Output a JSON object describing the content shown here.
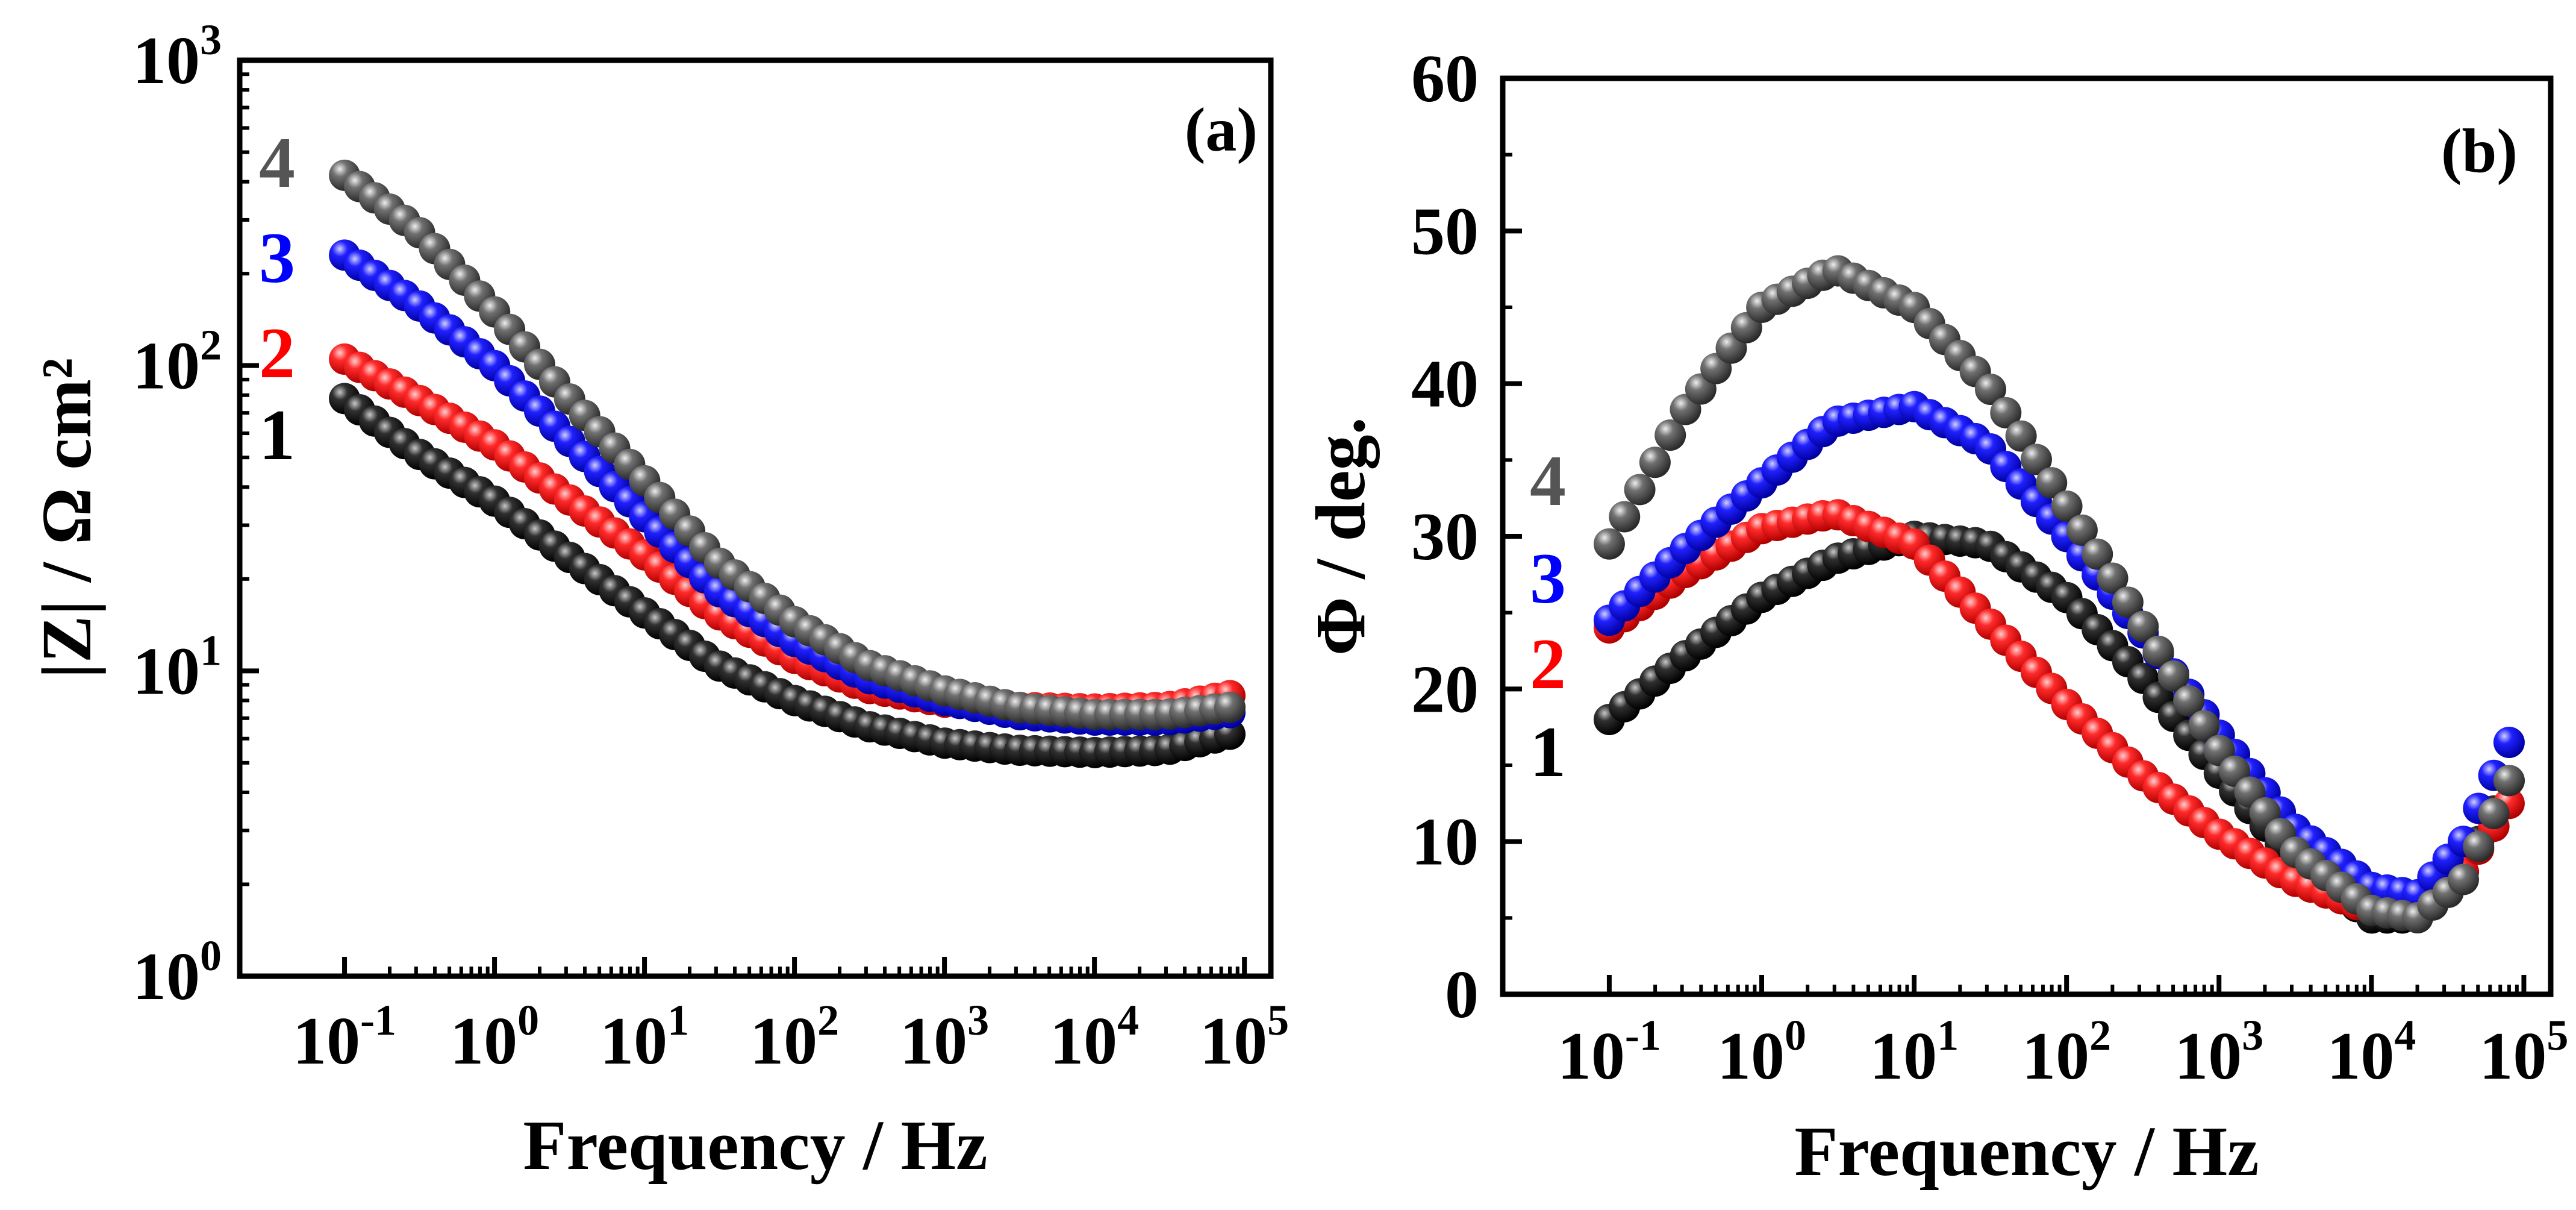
{
  "chart_data": [
    {
      "id": "a",
      "type": "scatter",
      "panel_label": "(a)",
      "xlabel": "Frequency / Hz",
      "ylabel": "|Z| / Ω cm²",
      "xscale": "log",
      "yscale": "log",
      "xlim": [
        0.02,
        150000
      ],
      "ylim": [
        1,
        1000
      ],
      "x_ticks": [
        {
          "value": 0.1,
          "base": "10",
          "exp": "-1"
        },
        {
          "value": 1,
          "base": "10",
          "exp": "0"
        },
        {
          "value": 10,
          "base": "10",
          "exp": "1"
        },
        {
          "value": 100,
          "base": "10",
          "exp": "2"
        },
        {
          "value": 1000,
          "base": "10",
          "exp": "3"
        },
        {
          "value": 10000,
          "base": "10",
          "exp": "4"
        },
        {
          "value": 100000,
          "base": "10",
          "exp": "5"
        }
      ],
      "y_ticks": [
        {
          "value": 1,
          "base": "10",
          "exp": "0"
        },
        {
          "value": 10,
          "base": "10",
          "exp": "1"
        },
        {
          "value": 100,
          "base": "10",
          "exp": "2"
        },
        {
          "value": 1000,
          "base": "10",
          "exp": "3"
        }
      ],
      "series": [
        {
          "name": "1",
          "color": "#000000",
          "x": [
            0.1,
            0.3,
            1,
            3,
            10,
            30,
            100,
            300,
            1000,
            3000,
            10000,
            30000,
            80000
          ],
          "y": [
            78,
            52,
            36,
            24,
            15.5,
            10.5,
            8,
            6.6,
            5.8,
            5.5,
            5.4,
            5.5,
            6.2
          ]
        },
        {
          "name": "2",
          "color": "#ff0000",
          "x": [
            0.1,
            0.3,
            1,
            3,
            10,
            30,
            100,
            300,
            1000,
            3000,
            10000,
            30000,
            80000
          ],
          "y": [
            105,
            78,
            55,
            37,
            24,
            15.5,
            11,
            8.8,
            7.9,
            7.6,
            7.5,
            7.6,
            8.3
          ]
        },
        {
          "name": "3",
          "color": "#0000ff",
          "x": [
            0.1,
            0.3,
            1,
            3,
            10,
            30,
            100,
            300,
            1000,
            3000,
            10000,
            30000,
            80000
          ],
          "y": [
            230,
            160,
            100,
            58,
            32,
            18.5,
            12.5,
            9.5,
            8.0,
            7.2,
            6.9,
            6.9,
            7.3
          ]
        },
        {
          "name": "4",
          "color": "#555555",
          "x": [
            0.1,
            0.3,
            1,
            3,
            10,
            30,
            100,
            300,
            1000,
            3000,
            10000,
            30000,
            80000
          ],
          "y": [
            420,
            280,
            150,
            80,
            42,
            23,
            14.5,
            10.5,
            8.6,
            7.6,
            7.2,
            7.2,
            7.6
          ]
        }
      ]
    },
    {
      "id": "b",
      "type": "scatter",
      "panel_label": "(b)",
      "xlabel": "Frequency / Hz",
      "ylabel": "Φ / deg.",
      "xscale": "log",
      "yscale": "linear",
      "xlim": [
        0.02,
        150000
      ],
      "ylim": [
        0,
        60
      ],
      "x_ticks": [
        {
          "value": 0.1,
          "base": "10",
          "exp": "-1"
        },
        {
          "value": 1,
          "base": "10",
          "exp": "0"
        },
        {
          "value": 10,
          "base": "10",
          "exp": "1"
        },
        {
          "value": 100,
          "base": "10",
          "exp": "2"
        },
        {
          "value": 1000,
          "base": "10",
          "exp": "3"
        },
        {
          "value": 10000,
          "base": "10",
          "exp": "4"
        },
        {
          "value": 100000,
          "base": "10",
          "exp": "5"
        }
      ],
      "y_ticks": [
        {
          "value": 0,
          "label": "0"
        },
        {
          "value": 10,
          "label": "10"
        },
        {
          "value": 20,
          "label": "20"
        },
        {
          "value": 30,
          "label": "30"
        },
        {
          "value": 40,
          "label": "40"
        },
        {
          "value": 50,
          "label": "50"
        },
        {
          "value": 60,
          "label": "60"
        }
      ],
      "series": [
        {
          "name": "1",
          "color": "#000000",
          "x": [
            0.1,
            0.3,
            1,
            3,
            10,
            30,
            100,
            300,
            1000,
            3000,
            10000,
            20000,
            40000,
            80000
          ],
          "y": [
            18,
            22,
            26,
            28.5,
            30,
            29.5,
            26,
            21,
            14.5,
            9,
            5,
            5,
            8,
            14
          ]
        },
        {
          "name": "2",
          "color": "#ff0000",
          "x": [
            0.1,
            0.3,
            1,
            3,
            10,
            30,
            100,
            300,
            1000,
            3000,
            10000,
            20000,
            40000,
            80000
          ],
          "y": [
            24,
            27.5,
            30.5,
            31.5,
            29.5,
            24.5,
            19,
            14.5,
            10.5,
            7.5,
            5.5,
            5.5,
            8,
            12.5
          ]
        },
        {
          "name": "3",
          "color": "#0000ff",
          "x": [
            0.1,
            0.3,
            1,
            3,
            10,
            30,
            100,
            300,
            1000,
            3000,
            10000,
            20000,
            40000,
            80000
          ],
          "y": [
            24.5,
            29,
            33.5,
            37.5,
            38.5,
            36,
            30,
            24,
            17,
            11,
            7,
            6.5,
            10,
            16.5
          ]
        },
        {
          "name": "4",
          "color": "#555555",
          "x": [
            0.1,
            0.3,
            1,
            3,
            10,
            30,
            100,
            300,
            1000,
            3000,
            10000,
            20000,
            40000,
            80000
          ],
          "y": [
            29.5,
            38,
            45,
            47.5,
            45,
            40,
            32,
            24.5,
            16,
            9.5,
            5.5,
            5,
            7.5,
            14
          ]
        }
      ]
    }
  ]
}
